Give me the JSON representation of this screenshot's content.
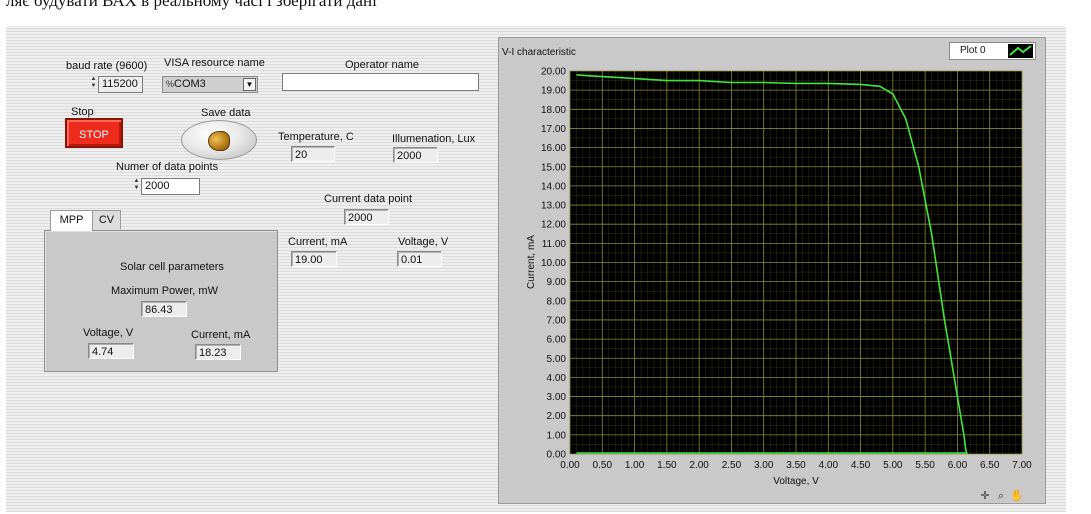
{
  "doc_text": "ляє будувати ВАХ в реальному часі і зберігати дані",
  "controls": {
    "baud_rate": {
      "label": "baud rate (9600)",
      "value": "115200"
    },
    "visa": {
      "label": "VISA resource name",
      "value": "COM3",
      "prefix_icon": "visa-io-icon"
    },
    "operator": {
      "label": "Operator name",
      "value": ""
    },
    "stop": {
      "label": "Stop",
      "button_text": "STOP"
    },
    "save": {
      "label": "Save data"
    },
    "num_points": {
      "label": "Numer of data points",
      "value": "2000"
    }
  },
  "indicators": {
    "temperature": {
      "label": "Temperature, C",
      "value": "20"
    },
    "illumination": {
      "label": "Illumenation, Lux",
      "value": "2000"
    },
    "current_point": {
      "label": "Current data point",
      "value": "2000"
    },
    "current": {
      "label": "Current, mA",
      "value": "19.00"
    },
    "voltage": {
      "label": "Voltage, V",
      "value": "0.01"
    }
  },
  "tabs": {
    "items": [
      {
        "label": "MPP"
      },
      {
        "label": "CV"
      }
    ],
    "active": "MPP",
    "mpp": {
      "title": "Solar cell parameters",
      "max_power": {
        "label": "Maximum Power, mW",
        "value": "86.43"
      },
      "voltage": {
        "label": "Voltage, V",
        "value": "4.74"
      },
      "current": {
        "label": "Current, mA",
        "value": "18.23"
      }
    }
  },
  "graph": {
    "plot_legend": "Plot 0",
    "palette_icons": [
      "crosshair-icon",
      "zoom-icon",
      "pan-icon"
    ]
  },
  "chart_data": {
    "type": "line",
    "title": "V-I characteristic",
    "xlabel": "Voltage, V",
    "ylabel": "Current, mA",
    "xlim": [
      0,
      7
    ],
    "ylim": [
      0,
      20
    ],
    "x_ticks": [
      "0.00",
      "0.50",
      "1.00",
      "1.50",
      "2.00",
      "2.50",
      "3.00",
      "3.50",
      "4.00",
      "4.50",
      "5.00",
      "5.50",
      "6.00",
      "6.50",
      "7.00"
    ],
    "y_ticks": [
      "0.00",
      "1.00",
      "2.00",
      "3.00",
      "4.00",
      "5.00",
      "6.00",
      "7.00",
      "8.00",
      "9.00",
      "10.00",
      "11.00",
      "12.00",
      "13.00",
      "14.00",
      "15.00",
      "16.00",
      "17.00",
      "18.00",
      "19.00",
      "20.00"
    ],
    "grid": true,
    "colors": {
      "plot_bg": "#000000",
      "grid": "#8c8a2a",
      "line": "#3fe63f"
    },
    "series": [
      {
        "name": "Plot 0",
        "x": [
          0.1,
          0.3,
          0.8,
          1.5,
          2.0,
          2.5,
          3.0,
          3.5,
          4.0,
          4.5,
          4.8,
          5.0,
          5.2,
          5.4,
          5.6,
          5.8,
          5.9,
          6.0,
          6.1,
          6.13,
          6.15
        ],
        "y": [
          19.8,
          19.75,
          19.65,
          19.5,
          19.5,
          19.4,
          19.4,
          19.35,
          19.35,
          19.3,
          19.2,
          18.8,
          17.5,
          15.0,
          11.5,
          7.0,
          5.0,
          3.0,
          1.0,
          0.2,
          0.0
        ]
      },
      {
        "name": "",
        "x": [
          0.1,
          6.15
        ],
        "y": [
          0.05,
          0.05
        ]
      }
    ]
  }
}
